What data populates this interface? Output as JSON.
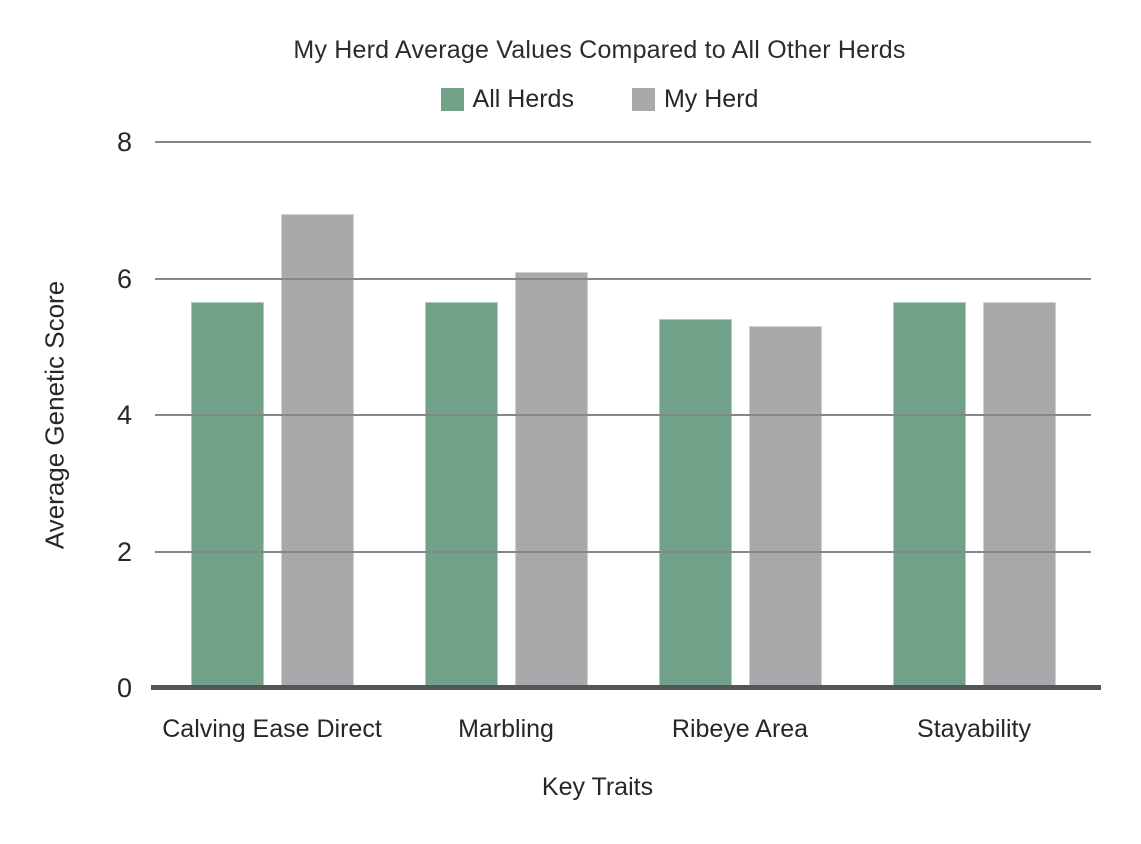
{
  "chart_data": {
    "type": "bar",
    "title": "My Herd Average Values Compared to All Other Herds",
    "xlabel": "Key Traits",
    "ylabel": "Average Genetic Score",
    "categories": [
      "Calving Ease Direct",
      "Marbling",
      "Ribeye Area",
      "Stayability"
    ],
    "series": [
      {
        "name": "All Herds",
        "color": "#72A18A",
        "values": [
          5.65,
          5.65,
          5.4,
          5.65
        ]
      },
      {
        "name": "My Herd",
        "color": "#A9A9AB",
        "values": [
          6.95,
          6.1,
          5.3,
          5.65
        ]
      }
    ],
    "ylim": [
      0,
      8
    ],
    "yticks": [
      0,
      2,
      4,
      6,
      8
    ],
    "grid": true,
    "legend_position": "top-center",
    "colors": {
      "gridline": "#85858A",
      "axis_line": "#53555D",
      "text": "#26262B"
    }
  }
}
